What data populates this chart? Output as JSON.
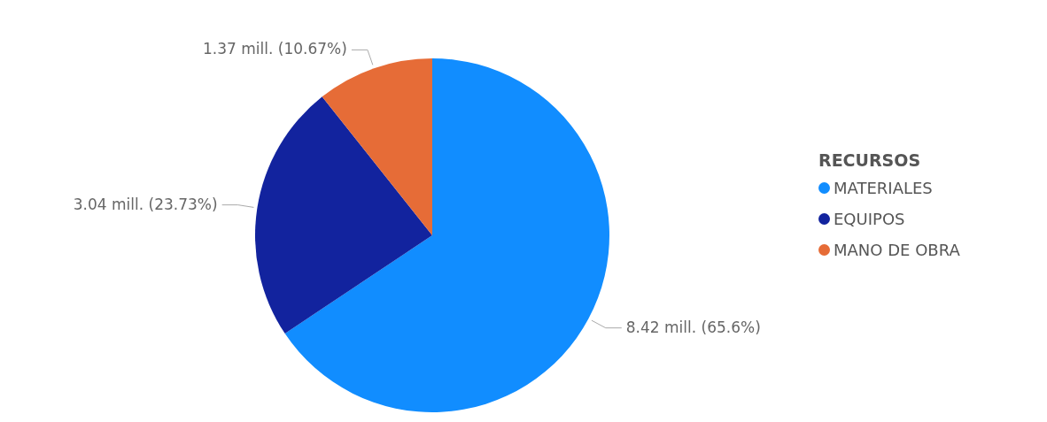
{
  "chart_data": {
    "type": "pie",
    "legend_title": "RECURSOS",
    "legend": "right",
    "categories": [
      "MATERIALES",
      "EQUIPOS",
      "MANO DE OBRA"
    ],
    "values": [
      8.42,
      3.04,
      1.37
    ],
    "colors": [
      "#118dff",
      "#12239e",
      "#e66c37"
    ],
    "value_labels": [
      "8.42 mill. (65.6%)",
      "3.04 mill. (23.73%)",
      "1.37 mill. (10.67%)"
    ]
  }
}
